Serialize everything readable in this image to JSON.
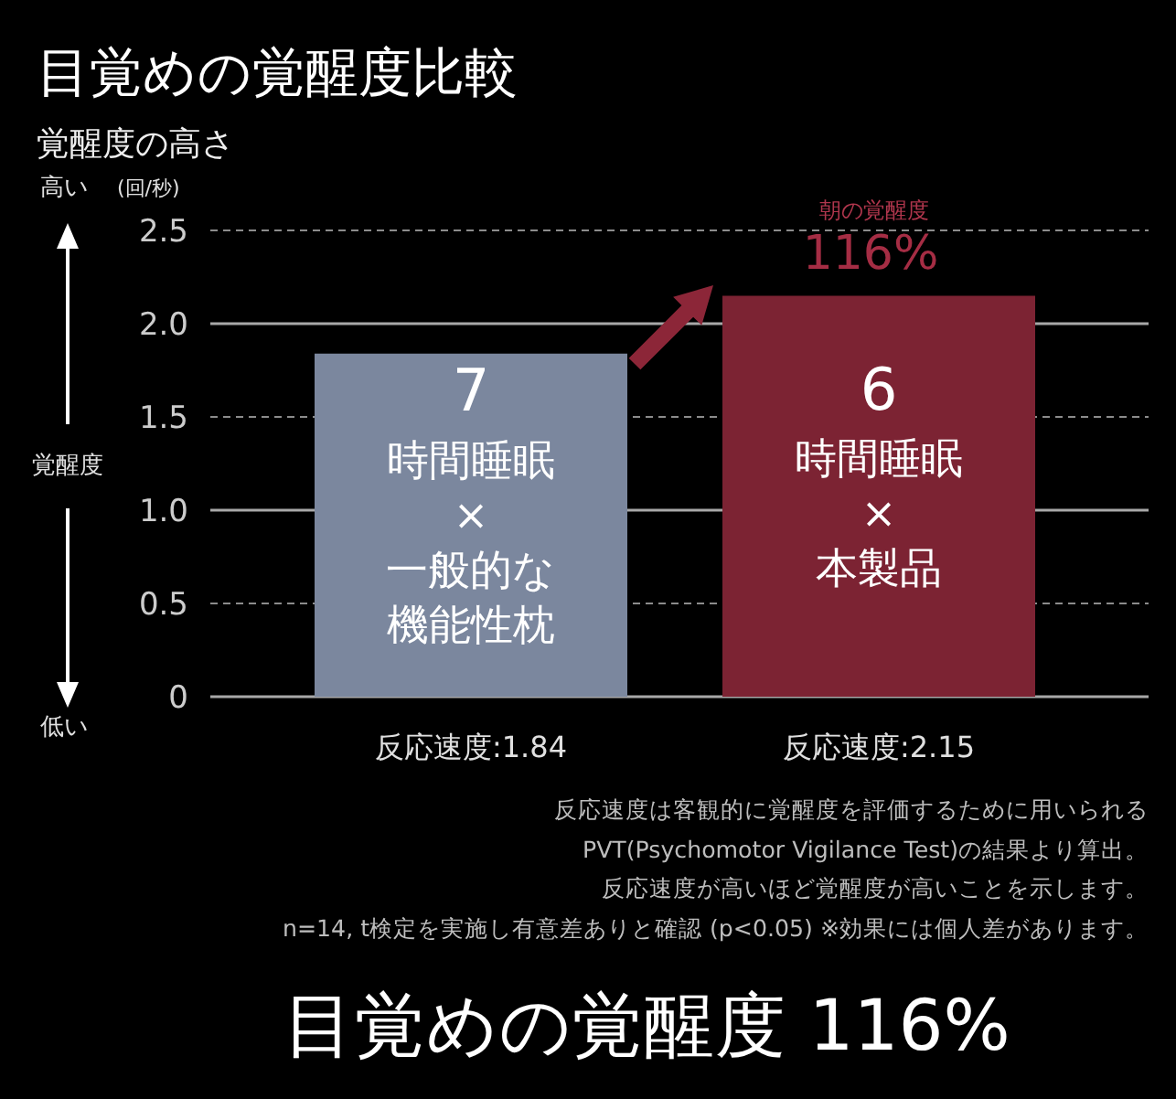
{
  "chart_data": {
    "type": "bar",
    "title": "目覚めの覚醒度比較",
    "ylabel": "覚醒度の高さ",
    "categories": [
      "7時間睡眠×一般的な機能性枕",
      "6時間睡眠×本製品"
    ],
    "values": [
      1.84,
      2.15
    ],
    "colors": [
      "#7b879e",
      "#7c2333"
    ],
    "value_labels": [
      "反応速度:1.84",
      "反応速度:2.15"
    ],
    "ylim": [
      0,
      2.5
    ],
    "yticks": [
      0,
      0.5,
      {
        "value": 1,
        "label": "1.0"
      },
      1.5,
      {
        "value": 2,
        "label": "2.0"
      },
      2.5
    ],
    "grid": "y",
    "annotations": [
      "高い",
      "(回/秒)",
      "覚醒度",
      "低い",
      "朝の覚醒度",
      "116%",
      "反応速度は客観的に覚醒度を評価するために用いられる",
      "PVT(Psychomotor Vigilance Test)の結果より算出。",
      "反応速度が高いほど覚醒度が高いことを示します。",
      "n=14, t検定を実施し有意差ありと確認 (p<0.05) ※効果には個人差があります。",
      "目覚めの覚醒度 116%"
    ]
  }
}
